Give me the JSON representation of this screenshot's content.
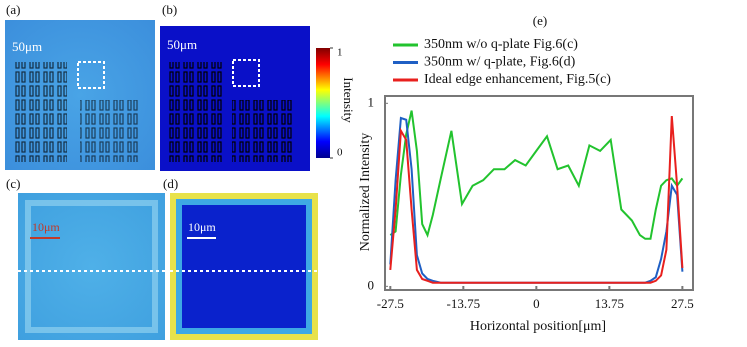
{
  "figure": {
    "panels": [
      "(a)",
      "(b)",
      "(c)",
      "(d)"
    ],
    "scale_bars": [
      "50μm",
      "50μm",
      "10μm",
      "10μm"
    ],
    "colorbar": {
      "label": "Intensity",
      "lim": [
        0,
        1
      ],
      "ticks": [
        0,
        1
      ]
    }
  },
  "chart_data": {
    "type": "line",
    "label": "(e)",
    "x_label": "Horizontal position[μm]",
    "y_label": "Normalized Intensity",
    "x": [
      -27.5,
      -26.5,
      -25.5,
      -24.5,
      -23.5,
      -22.5,
      -21.5,
      -20.5,
      -19.5,
      -18,
      -16,
      -14,
      -12,
      -10,
      -8,
      -6,
      -4,
      -2,
      0,
      2,
      4,
      6,
      8,
      10,
      12,
      14,
      16,
      18,
      19.5,
      20.5,
      21.5,
      22.5,
      23.5,
      24.5,
      25.5,
      26.5,
      27.5
    ],
    "series": [
      {
        "name": "350nm w/o q-plate Fig.6(c)",
        "color": "#22c32e",
        "values": [
          0.28,
          0.3,
          0.61,
          0.83,
          0.96,
          0.74,
          0.34,
          0.28,
          0.39,
          0.59,
          0.85,
          0.45,
          0.55,
          0.58,
          0.64,
          0.64,
          0.69,
          0.66,
          0.74,
          0.82,
          0.64,
          0.66,
          0.55,
          0.77,
          0.74,
          0.8,
          0.42,
          0.36,
          0.28,
          0.26,
          0.26,
          0.42,
          0.55,
          0.58,
          0.59,
          0.55,
          0.59
        ]
      },
      {
        "name": "350nm w/ q-plate, Fig.6(d)",
        "color": "#1f5fc4",
        "values": [
          0.12,
          0.58,
          0.92,
          0.91,
          0.64,
          0.17,
          0.07,
          0.04,
          0.03,
          0.02,
          0.02,
          0.02,
          0.02,
          0.02,
          0.02,
          0.02,
          0.02,
          0.02,
          0.02,
          0.02,
          0.02,
          0.02,
          0.02,
          0.02,
          0.02,
          0.02,
          0.02,
          0.02,
          0.02,
          0.02,
          0.03,
          0.05,
          0.15,
          0.3,
          0.55,
          0.5,
          0.08
        ]
      },
      {
        "name": "Ideal edge enhancement, Fig.5(c)",
        "color": "#e8201e",
        "values": [
          0.09,
          0.42,
          0.85,
          0.8,
          0.42,
          0.09,
          0.04,
          0.03,
          0.02,
          0.02,
          0.02,
          0.02,
          0.02,
          0.02,
          0.02,
          0.02,
          0.02,
          0.02,
          0.02,
          0.02,
          0.02,
          0.02,
          0.02,
          0.02,
          0.02,
          0.02,
          0.02,
          0.02,
          0.02,
          0.02,
          0.02,
          0.03,
          0.06,
          0.2,
          0.93,
          0.55,
          0.1
        ]
      }
    ],
    "xlim": [
      -28.5,
      29.5
    ],
    "ylim": [
      -0.02,
      1.04
    ],
    "xticks": [
      -27.5,
      -13.75,
      0,
      13.75,
      27.5
    ],
    "yticks": [
      0,
      1
    ],
    "legend": "top"
  }
}
